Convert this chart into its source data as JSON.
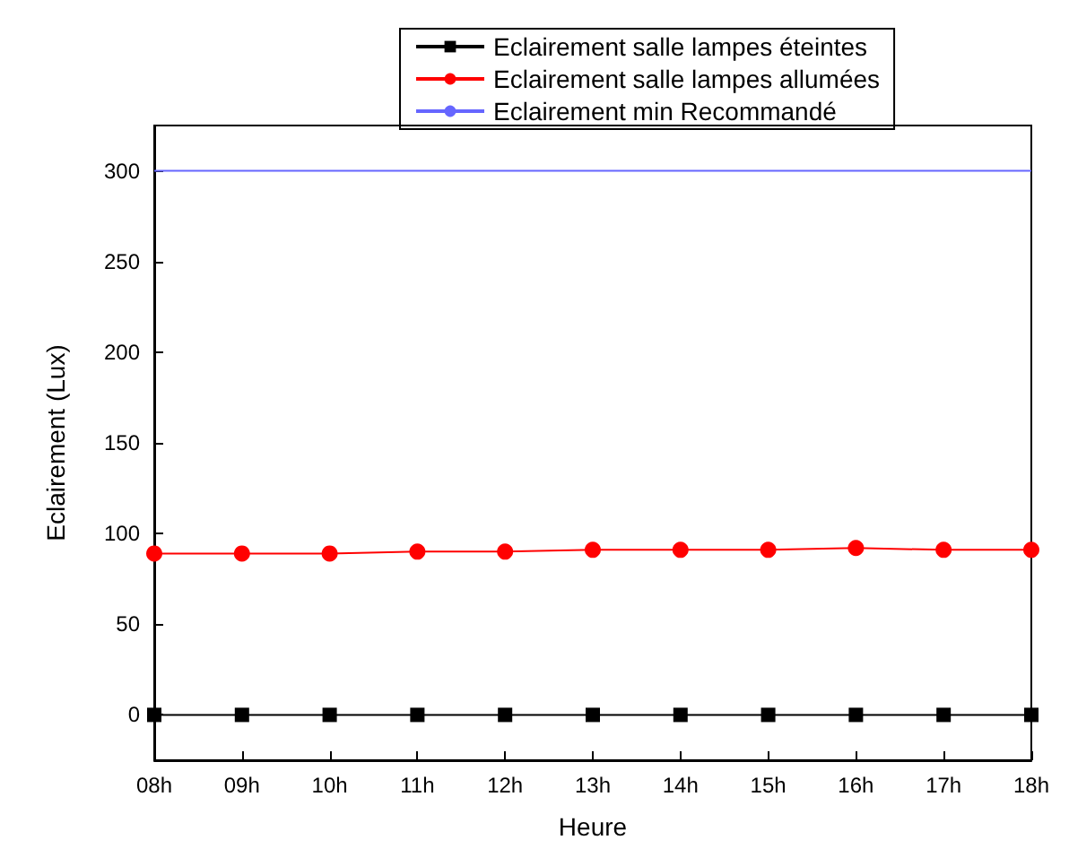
{
  "chart_data": {
    "type": "line",
    "xlabel": "Heure",
    "ylabel": "Eclairement (Lux)",
    "categories": [
      "08h",
      "09h",
      "10h",
      "11h",
      "12h",
      "13h",
      "14h",
      "15h",
      "16h",
      "17h",
      "18h"
    ],
    "series": [
      {
        "name": "Eclairement salle lampes éteintes",
        "color": "#000000",
        "marker": "square",
        "values": [
          0,
          0,
          0,
          0,
          0,
          0,
          0,
          0,
          0,
          0,
          0
        ]
      },
      {
        "name": "Eclairement salle lampes allumées",
        "color": "#ff0000",
        "marker": "circle",
        "values": [
          89,
          89,
          89,
          90,
          90,
          91,
          91,
          91,
          92,
          91,
          91
        ]
      },
      {
        "name": "Eclairement min Recommandé",
        "color": "#6666ff",
        "marker": "none",
        "values": [
          300,
          300,
          300,
          300,
          300,
          300,
          300,
          300,
          300,
          300,
          300
        ]
      }
    ],
    "ylim": [
      -25,
      325
    ],
    "yticks": [
      0,
      50,
      100,
      150,
      200,
      250,
      300
    ],
    "grid": false,
    "legend": "top",
    "line_style": "solid"
  }
}
